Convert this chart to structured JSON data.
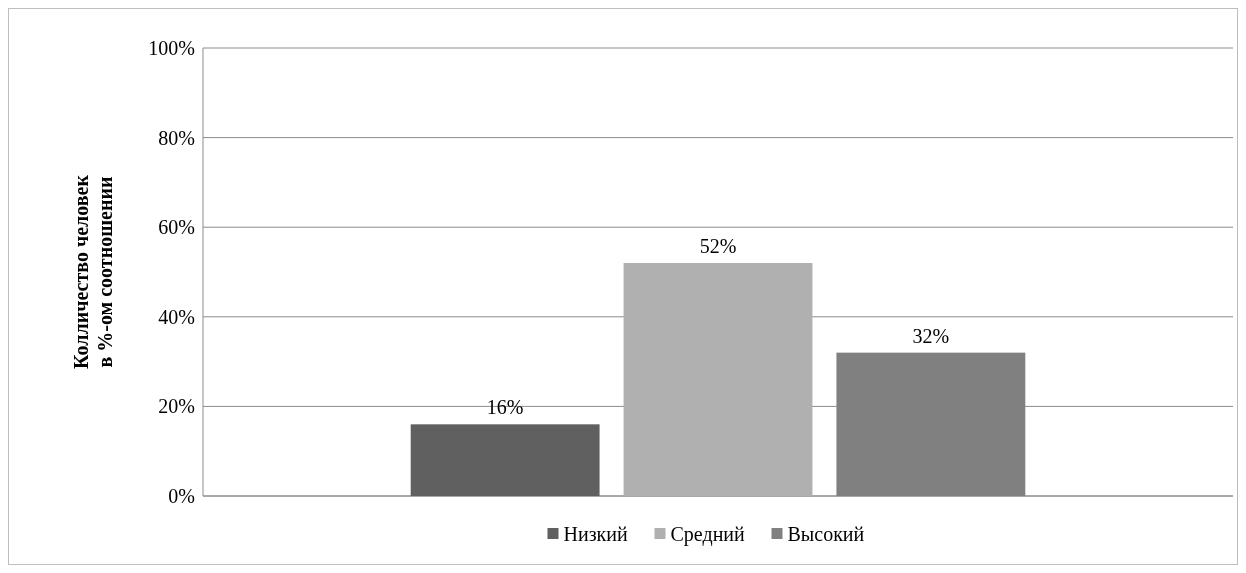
{
  "chart_data": {
    "type": "bar",
    "ylabel": "Колличество человек\nв %-ом соотношении",
    "categories": [
      null
    ],
    "series": [
      {
        "name": "Низкий",
        "color": "#606060",
        "values": [
          16
        ],
        "value_labels": [
          "16%"
        ]
      },
      {
        "name": "Средний",
        "color": "#b0b0b0",
        "values": [
          52
        ],
        "value_labels": [
          "52%"
        ]
      },
      {
        "name": "Высокий",
        "color": "#808080",
        "values": [
          32
        ],
        "value_labels": [
          "32%"
        ]
      }
    ],
    "ylim": [
      0,
      100
    ],
    "yticks": [
      {
        "value": 0,
        "label": "0%"
      },
      {
        "value": 20,
        "label": "20%"
      },
      {
        "value": 40,
        "label": "40%"
      },
      {
        "value": 60,
        "label": "60%"
      },
      {
        "value": 80,
        "label": "80%"
      },
      {
        "value": 100,
        "label": "100%"
      }
    ],
    "grid": "y",
    "legend": "bottom"
  }
}
